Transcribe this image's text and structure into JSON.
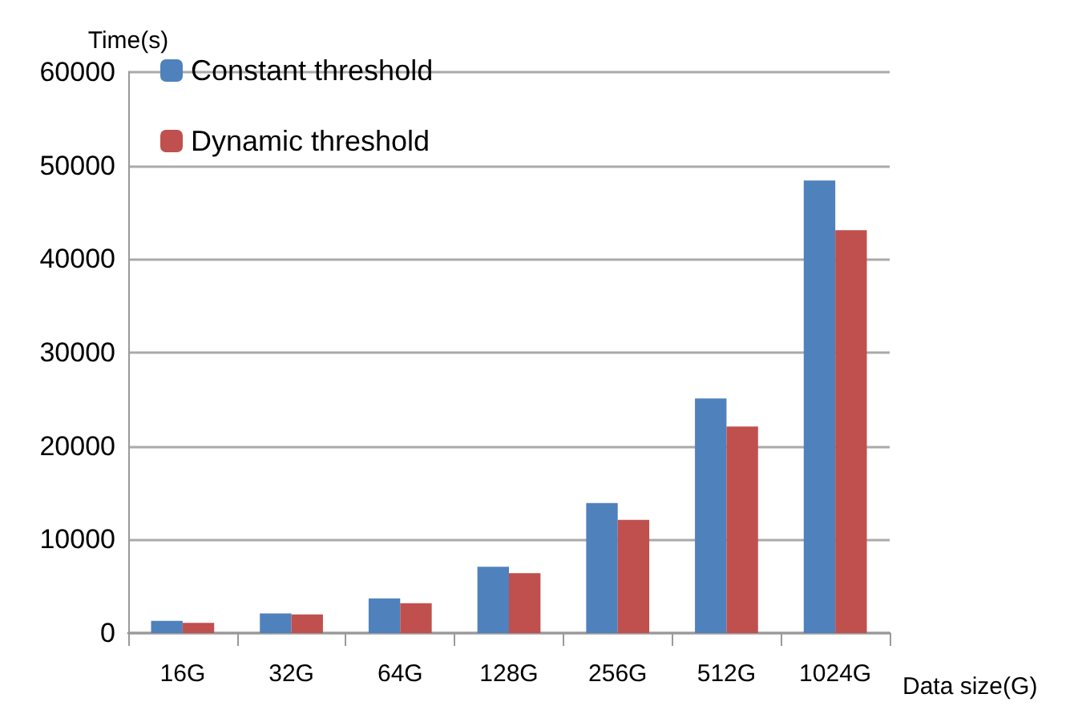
{
  "chart_data": {
    "type": "bar",
    "xlabel": "Data size(G)",
    "ylabel": "Time(s)",
    "categories": [
      "16G",
      "32G",
      "64G",
      "128G",
      "256G",
      "512G",
      "1024G"
    ],
    "series": [
      {
        "name": "Constant threshold",
        "color": "#4f81bd",
        "values": [
          1300,
          2100,
          3700,
          7100,
          13900,
          25100,
          48400
        ]
      },
      {
        "name": "Dynamic threshold",
        "color": "#c0504d",
        "values": [
          1100,
          2000,
          3200,
          6400,
          12100,
          22100,
          43100
        ]
      }
    ],
    "ylim": [
      0,
      60000
    ],
    "yticks": [
      0,
      10000,
      20000,
      30000,
      40000,
      50000,
      60000
    ],
    "grid": "y",
    "legend": "top left"
  }
}
